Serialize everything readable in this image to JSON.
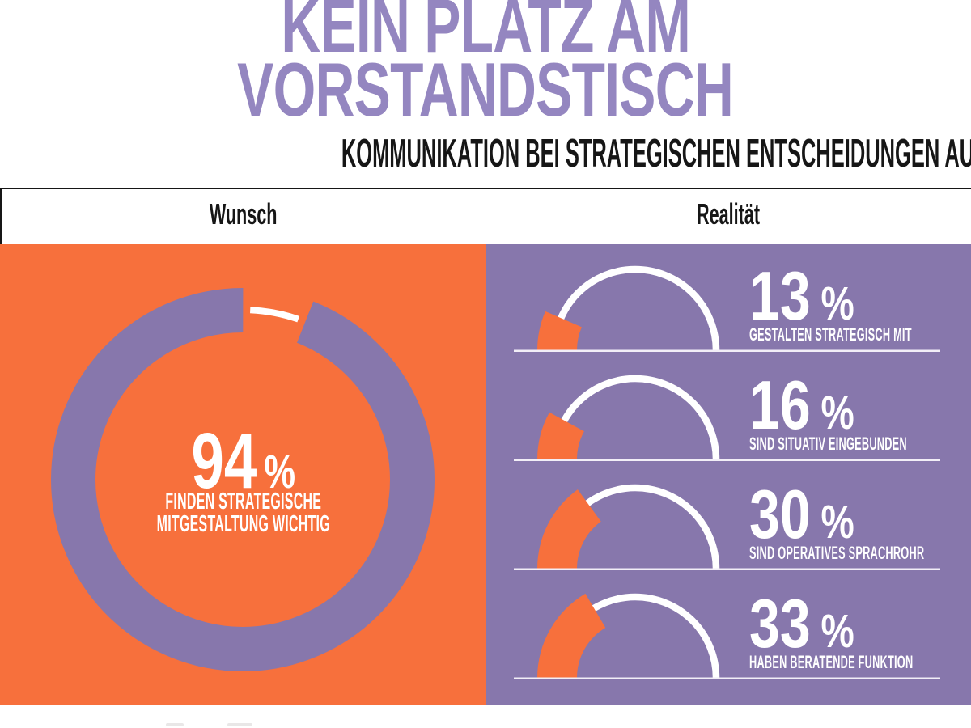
{
  "title": {
    "line1": "KEIN PLATZ AM",
    "line2": "VORSTANDSTISCH"
  },
  "subtitle": "KOMMUNIKATION BEI STRATEGISCHEN ENTSCHEIDUNGEN AUSSEN VOR",
  "columns": {
    "left_label": "Wunsch",
    "right_label": "Realität"
  },
  "percent_symbol": "%",
  "colors": {
    "orange": "#F7703C",
    "panel_purple": "#8777AC",
    "title_purple": "#9486C0",
    "ink_black": "#161616",
    "white": "#FFFFFF",
    "baseline_line": "#F2EEF7"
  },
  "chart_data": [
    {
      "type": "donut",
      "panel": "Wunsch",
      "value": 94,
      "remainder": 6,
      "label_line1": "FINDEN STRATEGISCHE",
      "label_line2": "MITGESTALTUNG WICHTIG",
      "ring_color": "#8777AC",
      "background": "#F7703C",
      "value_text_color": "#FFFFFF"
    },
    {
      "type": "gauge",
      "panel": "Realität",
      "max": 100,
      "background": "#8777AC",
      "fill_color": "#F7703C",
      "arc_color": "#FFFFFF",
      "gauges": [
        {
          "value": 13,
          "label": "GESTALTEN STRATEGISCH MIT"
        },
        {
          "value": 16,
          "label": "SIND SITUATIV EINGEBUNDEN"
        },
        {
          "value": 30,
          "label": "SIND OPERATIVES SPRACHROHR"
        },
        {
          "value": 33,
          "label": "HABEN BERATENDE FUNKTION"
        }
      ]
    }
  ]
}
